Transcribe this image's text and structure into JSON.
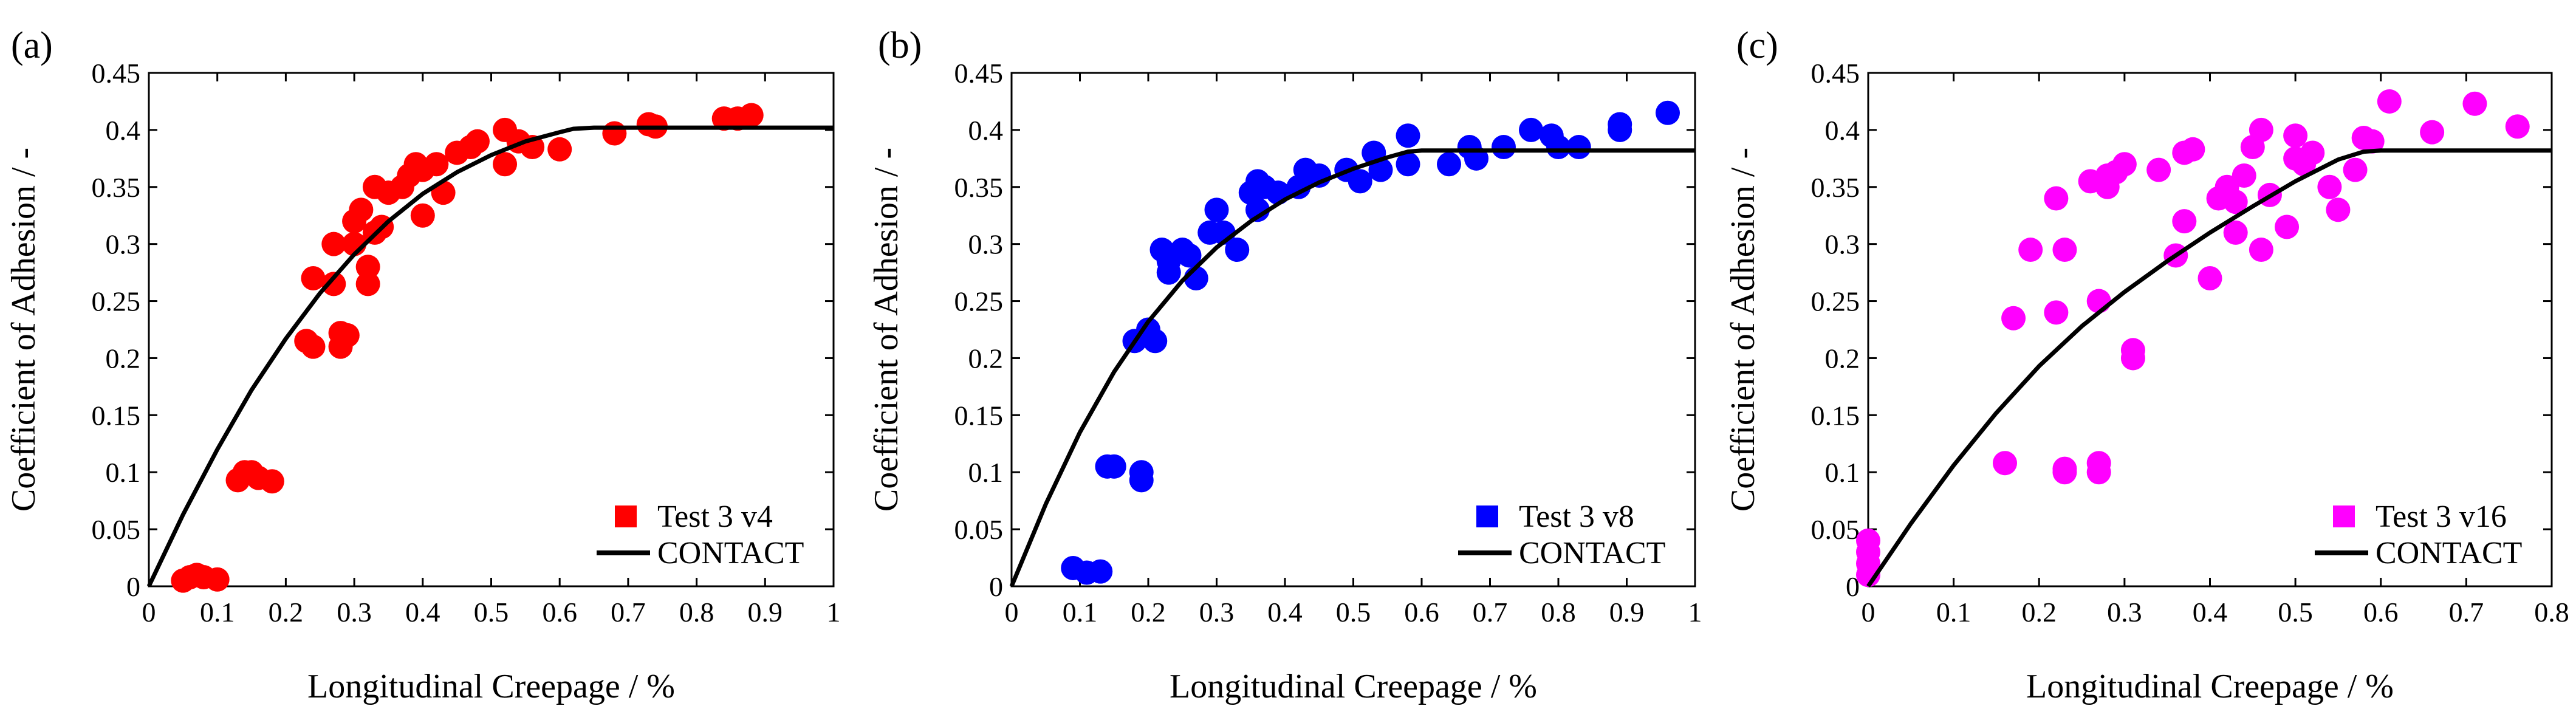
{
  "figure": {
    "panels": [
      "(a)",
      "(b)",
      "(c)"
    ]
  },
  "chart_data": [
    {
      "type": "scatter",
      "panel_label": "(a)",
      "xlabel": "Longitudinal Creepage / %",
      "ylabel": "Coefficient of Adhesion / -",
      "xlim": [
        0,
        1
      ],
      "ylim": [
        0,
        0.45
      ],
      "xticks": [
        "0",
        "0.1",
        "0.2",
        "0.3",
        "0.4",
        "0.5",
        "0.6",
        "0.7",
        "0.8",
        "0.9",
        "1"
      ],
      "yticks": [
        "0",
        "0.05",
        "0.1",
        "0.15",
        "0.2",
        "0.25",
        "0.3",
        "0.35",
        "0.4",
        "0.45"
      ],
      "legend_placement": "bottom-right",
      "series": [
        {
          "name": "Test 3 v4",
          "kind": "markers",
          "color": "#ff0000",
          "marker": "circle",
          "x": [
            0.05,
            0.06,
            0.07,
            0.08,
            0.1,
            0.13,
            0.14,
            0.15,
            0.16,
            0.18,
            0.23,
            0.24,
            0.24,
            0.27,
            0.27,
            0.28,
            0.28,
            0.29,
            0.3,
            0.3,
            0.31,
            0.32,
            0.32,
            0.33,
            0.33,
            0.34,
            0.35,
            0.37,
            0.38,
            0.39,
            0.4,
            0.4,
            0.42,
            0.43,
            0.45,
            0.47,
            0.48,
            0.52,
            0.52,
            0.54,
            0.56,
            0.6,
            0.68,
            0.73,
            0.74,
            0.84,
            0.86,
            0.88
          ],
          "y": [
            0.005,
            0.008,
            0.01,
            0.008,
            0.006,
            0.093,
            0.1,
            0.1,
            0.095,
            0.092,
            0.215,
            0.21,
            0.27,
            0.3,
            0.265,
            0.222,
            0.21,
            0.22,
            0.32,
            0.3,
            0.33,
            0.28,
            0.265,
            0.35,
            0.31,
            0.315,
            0.345,
            0.35,
            0.36,
            0.37,
            0.365,
            0.325,
            0.37,
            0.345,
            0.38,
            0.385,
            0.39,
            0.37,
            0.4,
            0.39,
            0.385,
            0.383,
            0.397,
            0.405,
            0.403,
            0.41,
            0.41,
            0.413
          ]
        },
        {
          "name": "CONTACT",
          "kind": "line",
          "color": "#000000",
          "x": [
            0,
            0.05,
            0.1,
            0.15,
            0.2,
            0.25,
            0.3,
            0.35,
            0.4,
            0.45,
            0.5,
            0.55,
            0.6,
            0.62,
            0.65,
            0.7,
            0.8,
            0.9,
            1.0
          ],
          "y": [
            0,
            0.063,
            0.12,
            0.172,
            0.217,
            0.257,
            0.291,
            0.32,
            0.344,
            0.363,
            0.378,
            0.39,
            0.398,
            0.401,
            0.402,
            0.402,
            0.402,
            0.402,
            0.402
          ]
        }
      ]
    },
    {
      "type": "scatter",
      "panel_label": "(b)",
      "xlabel": "Longitudinal Creepage / %",
      "ylabel": "Coefficient of Adhesion / -",
      "xlim": [
        0,
        1
      ],
      "ylim": [
        0,
        0.45
      ],
      "xticks": [
        "0",
        "0.1",
        "0.2",
        "0.3",
        "0.4",
        "0.5",
        "0.6",
        "0.7",
        "0.8",
        "0.9",
        "1"
      ],
      "yticks": [
        "0",
        "0.05",
        "0.1",
        "0.15",
        "0.2",
        "0.25",
        "0.3",
        "0.35",
        "0.4",
        "0.45"
      ],
      "legend_placement": "bottom-right",
      "series": [
        {
          "name": "Test 3 v8",
          "kind": "markers",
          "color": "#0000ff",
          "marker": "circle",
          "x": [
            0.09,
            0.11,
            0.13,
            0.14,
            0.15,
            0.18,
            0.19,
            0.19,
            0.2,
            0.21,
            0.22,
            0.23,
            0.23,
            0.25,
            0.26,
            0.27,
            0.29,
            0.3,
            0.31,
            0.33,
            0.35,
            0.36,
            0.36,
            0.37,
            0.39,
            0.42,
            0.43,
            0.45,
            0.49,
            0.51,
            0.53,
            0.54,
            0.58,
            0.58,
            0.64,
            0.67,
            0.68,
            0.72,
            0.76,
            0.79,
            0.8,
            0.83,
            0.89,
            0.89,
            0.96
          ],
          "y": [
            0.016,
            0.012,
            0.013,
            0.105,
            0.105,
            0.215,
            0.093,
            0.1,
            0.225,
            0.215,
            0.295,
            0.275,
            0.285,
            0.295,
            0.29,
            0.27,
            0.31,
            0.33,
            0.31,
            0.295,
            0.345,
            0.355,
            0.33,
            0.35,
            0.345,
            0.35,
            0.365,
            0.36,
            0.365,
            0.355,
            0.38,
            0.365,
            0.395,
            0.37,
            0.37,
            0.385,
            0.375,
            0.385,
            0.4,
            0.395,
            0.385,
            0.385,
            0.4,
            0.405,
            0.415
          ]
        },
        {
          "name": "CONTACT",
          "kind": "line",
          "color": "#000000",
          "x": [
            0,
            0.05,
            0.1,
            0.15,
            0.2,
            0.25,
            0.3,
            0.35,
            0.4,
            0.45,
            0.5,
            0.55,
            0.58,
            0.6,
            0.7,
            0.8,
            0.9,
            1.0
          ],
          "y": [
            0,
            0.072,
            0.135,
            0.188,
            0.232,
            0.268,
            0.297,
            0.32,
            0.339,
            0.354,
            0.366,
            0.376,
            0.381,
            0.382,
            0.382,
            0.382,
            0.382,
            0.382
          ]
        }
      ]
    },
    {
      "type": "scatter",
      "panel_label": "(c)",
      "xlabel": "Longitudinal Creepage / %",
      "ylabel": "Coefficient of Adhesion / -",
      "xlim": [
        0,
        0.8
      ],
      "ylim": [
        0,
        0.45
      ],
      "xticks": [
        "0",
        "0.1",
        "0.2",
        "0.3",
        "0.4",
        "0.5",
        "0.6",
        "0.7",
        "0.8"
      ],
      "yticks": [
        "0",
        "0.05",
        "0.1",
        "0.15",
        "0.2",
        "0.25",
        "0.3",
        "0.35",
        "0.4",
        "0.45"
      ],
      "legend_placement": "bottom-right",
      "series": [
        {
          "name": "Test 3 v16",
          "kind": "markers",
          "color": "#ff00ff",
          "marker": "circle",
          "x": [
            0.0,
            0.0,
            0.0,
            0.0,
            0.16,
            0.17,
            0.19,
            0.22,
            0.22,
            0.23,
            0.23,
            0.23,
            0.26,
            0.27,
            0.27,
            0.27,
            0.28,
            0.28,
            0.29,
            0.3,
            0.31,
            0.31,
            0.34,
            0.36,
            0.37,
            0.37,
            0.38,
            0.4,
            0.41,
            0.42,
            0.43,
            0.43,
            0.44,
            0.45,
            0.46,
            0.46,
            0.47,
            0.49,
            0.5,
            0.5,
            0.51,
            0.52,
            0.54,
            0.55,
            0.57,
            0.58,
            0.59,
            0.61,
            0.66,
            0.71,
            0.76
          ],
          "y": [
            0.04,
            0.03,
            0.02,
            0.01,
            0.108,
            0.235,
            0.295,
            0.24,
            0.34,
            0.295,
            0.103,
            0.1,
            0.355,
            0.1,
            0.108,
            0.25,
            0.35,
            0.36,
            0.363,
            0.37,
            0.2,
            0.207,
            0.365,
            0.29,
            0.38,
            0.32,
            0.383,
            0.27,
            0.34,
            0.35,
            0.31,
            0.337,
            0.36,
            0.385,
            0.4,
            0.295,
            0.343,
            0.315,
            0.375,
            0.395,
            0.37,
            0.38,
            0.35,
            0.33,
            0.365,
            0.393,
            0.39,
            0.425,
            0.398,
            0.423,
            0.403
          ]
        },
        {
          "name": "CONTACT",
          "kind": "line",
          "color": "#000000",
          "x": [
            0,
            0.05,
            0.1,
            0.15,
            0.2,
            0.25,
            0.3,
            0.35,
            0.4,
            0.45,
            0.5,
            0.55,
            0.58,
            0.6,
            0.7,
            0.8
          ],
          "y": [
            0,
            0.055,
            0.106,
            0.152,
            0.193,
            0.228,
            0.258,
            0.285,
            0.31,
            0.333,
            0.355,
            0.374,
            0.381,
            0.382,
            0.382,
            0.382
          ]
        }
      ]
    }
  ]
}
